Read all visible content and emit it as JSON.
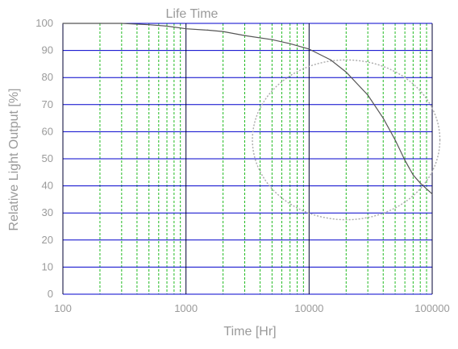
{
  "chart_data": {
    "type": "line",
    "title": "Life Time",
    "xlabel": "Time [Hr]",
    "ylabel": "Relative Light Output [%]",
    "x_scale": "log",
    "xlim": [
      100,
      100000
    ],
    "ylim": [
      0,
      100
    ],
    "x_ticks": [
      "100",
      "1000",
      "10000",
      "100000"
    ],
    "y_ticks": [
      "0",
      "10",
      "20",
      "30",
      "40",
      "50",
      "60",
      "70",
      "80",
      "90",
      "100"
    ],
    "grid": {
      "major_x": true,
      "minor_x": true,
      "major_y": true
    },
    "series": [
      {
        "x": [
          100,
          200,
          300,
          500,
          700,
          1000,
          1500,
          2000,
          3000,
          5000,
          7000,
          10000,
          15000,
          20000,
          30000,
          40000,
          50000,
          60000,
          70000,
          80000,
          100000
        ],
        "y": [
          100,
          100,
          100,
          99.5,
          99,
          98,
          97.5,
          97,
          95.5,
          94,
          92.5,
          90.5,
          86.5,
          82,
          73.5,
          65,
          57,
          49.5,
          44,
          41,
          37
        ]
      }
    ],
    "annotation": {
      "shape": "dotted-ellipse",
      "center": [
        20000,
        57
      ],
      "x_range": [
        3000,
        100000
      ],
      "y_range": [
        28,
        87
      ]
    },
    "colors": {
      "major_grid_y": "#0000cc",
      "major_grid_x": "#000033",
      "minor_grid_x": "#22bb22",
      "curve": "#555555",
      "annotation": "#aaaaaa",
      "text": "#9a9a9a"
    }
  }
}
